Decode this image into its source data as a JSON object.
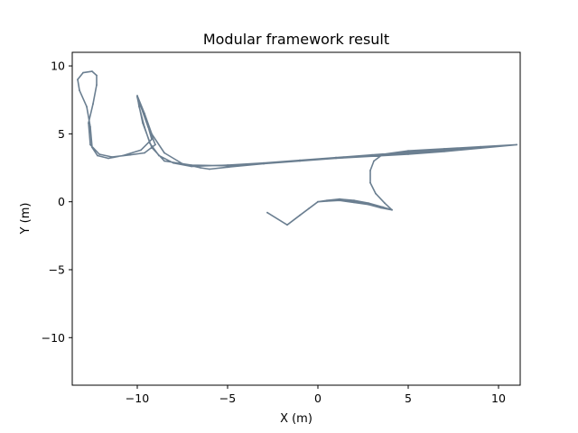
{
  "chart_data": {
    "type": "line",
    "title": "Modular framework result",
    "xlabel": "X (m)",
    "ylabel": "Y (m)",
    "xlim": [
      -13.6,
      11.2
    ],
    "ylim": [
      -13.5,
      11.0
    ],
    "xticks": [
      -10,
      -5,
      0,
      5,
      10
    ],
    "yticks": [
      -10,
      -5,
      0,
      5,
      10
    ],
    "xtick_labels": [
      "−10",
      "−5",
      "0",
      "5",
      "10"
    ],
    "ytick_labels": [
      "−10",
      "−5",
      "0",
      "5",
      "10"
    ],
    "grid": false,
    "line_color": "#6b7f91",
    "series": [
      {
        "name": "",
        "points": [
          [
            -2.8,
            -0.8
          ],
          [
            -1.7,
            -1.7
          ],
          [
            -1.0,
            -1.0
          ],
          [
            -0.5,
            -0.5
          ],
          [
            0.0,
            0.0
          ],
          [
            0.6,
            0.1
          ],
          [
            1.2,
            0.15
          ],
          [
            2.0,
            0.05
          ],
          [
            2.8,
            -0.2
          ],
          [
            3.6,
            -0.4
          ],
          [
            4.1,
            -0.6
          ],
          [
            3.6,
            -0.4
          ],
          [
            2.8,
            -0.1
          ],
          [
            2.0,
            0.1
          ],
          [
            1.2,
            0.2
          ],
          [
            0.5,
            0.1
          ],
          [
            0.0,
            0.0
          ],
          [
            0.5,
            0.05
          ],
          [
            1.2,
            0.1
          ],
          [
            2.0,
            -0.05
          ],
          [
            2.8,
            -0.2
          ],
          [
            3.5,
            -0.45
          ],
          [
            4.1,
            -0.6
          ],
          [
            3.7,
            -0.1
          ],
          [
            3.2,
            0.6
          ],
          [
            2.9,
            1.4
          ],
          [
            2.9,
            2.3
          ],
          [
            3.1,
            3.0
          ],
          [
            3.6,
            3.5
          ],
          [
            5.0,
            3.75
          ],
          [
            7.0,
            3.9
          ],
          [
            9.0,
            4.05
          ],
          [
            11.0,
            4.2
          ],
          [
            9.0,
            3.95
          ],
          [
            7.0,
            3.75
          ],
          [
            5.0,
            3.55
          ],
          [
            3.0,
            3.4
          ],
          [
            1.0,
            3.25
          ],
          [
            -1.0,
            3.05
          ],
          [
            -3.0,
            2.85
          ],
          [
            -5.0,
            2.7
          ],
          [
            -7.0,
            2.6
          ],
          [
            -8.0,
            2.85
          ],
          [
            -8.8,
            3.4
          ],
          [
            -9.3,
            4.3
          ],
          [
            -9.6,
            5.5
          ],
          [
            -9.9,
            7.0
          ],
          [
            -10.0,
            7.8
          ],
          [
            -9.6,
            6.5
          ],
          [
            -9.2,
            5.0
          ],
          [
            -8.5,
            3.6
          ],
          [
            -7.5,
            2.8
          ],
          [
            -6.5,
            2.5
          ],
          [
            -6.0,
            2.4
          ],
          [
            -5.0,
            2.55
          ],
          [
            -3.0,
            2.8
          ],
          [
            -1.0,
            3.05
          ],
          [
            1.0,
            3.25
          ],
          [
            3.0,
            3.45
          ],
          [
            5.0,
            3.65
          ],
          [
            7.0,
            3.8
          ],
          [
            9.0,
            4.0
          ],
          [
            11.0,
            4.2
          ],
          [
            9.0,
            3.95
          ],
          [
            7.0,
            3.7
          ],
          [
            5.0,
            3.5
          ],
          [
            3.0,
            3.35
          ],
          [
            1.0,
            3.2
          ],
          [
            -1.0,
            3.0
          ],
          [
            -3.0,
            2.8
          ],
          [
            -5.0,
            2.65
          ],
          [
            -7.0,
            2.7
          ],
          [
            -8.5,
            3.0
          ],
          [
            -9.2,
            4.0
          ],
          [
            -9.7,
            5.8
          ],
          [
            -10.0,
            7.7
          ],
          [
            -9.5,
            6.0
          ],
          [
            -9.2,
            4.6
          ],
          [
            -9.8,
            3.8
          ],
          [
            -10.8,
            3.4
          ],
          [
            -11.6,
            3.2
          ],
          [
            -12.2,
            3.4
          ],
          [
            -12.5,
            4.0
          ],
          [
            -12.6,
            5.5
          ],
          [
            -12.8,
            7.0
          ],
          [
            -13.2,
            8.2
          ],
          [
            -13.3,
            9.0
          ],
          [
            -13.0,
            9.5
          ],
          [
            -12.5,
            9.6
          ],
          [
            -12.25,
            9.3
          ],
          [
            -12.25,
            8.6
          ],
          [
            -12.45,
            7.2
          ],
          [
            -12.7,
            5.8
          ],
          [
            -12.6,
            4.2
          ],
          [
            -12.1,
            3.5
          ],
          [
            -11.4,
            3.3
          ],
          [
            -10.4,
            3.45
          ],
          [
            -9.6,
            3.6
          ],
          [
            -9.0,
            4.2
          ],
          [
            -9.4,
            5.5
          ],
          [
            -9.8,
            7.0
          ],
          [
            -10.0,
            7.8
          ]
        ]
      }
    ]
  }
}
